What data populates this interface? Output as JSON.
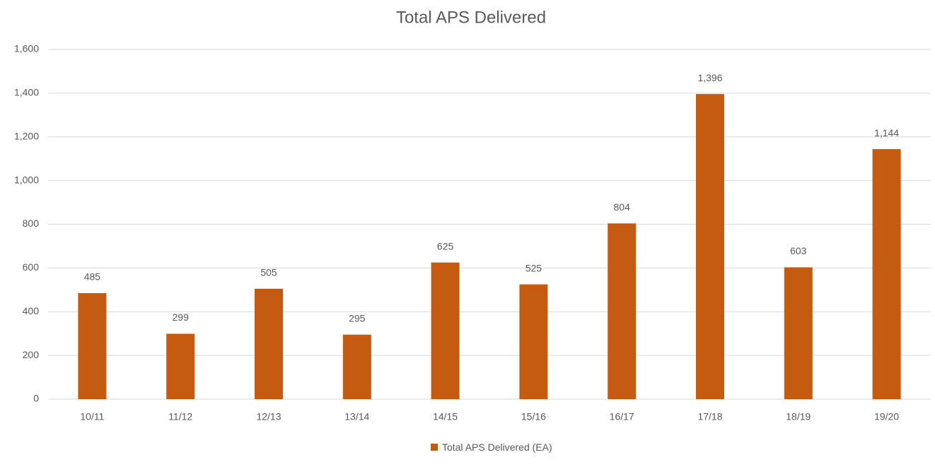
{
  "chart_data": {
    "type": "bar",
    "title": "Total APS Delivered",
    "categories": [
      "10/11",
      "11/12",
      "12/13",
      "13/14",
      "14/15",
      "15/16",
      "16/17",
      "17/18",
      "18/19",
      "19/20"
    ],
    "series": [
      {
        "name": "Total APS Delivered (EA)",
        "color": "#c55a11",
        "values": [
          485,
          299,
          505,
          295,
          625,
          525,
          804,
          1396,
          603,
          1144
        ],
        "value_labels": [
          "485",
          "299",
          "505",
          "295",
          "625",
          "525",
          "804",
          "1,396",
          "603",
          "1,144"
        ]
      }
    ],
    "ylim": [
      0,
      1600
    ],
    "yticks": [
      0,
      200,
      400,
      600,
      800,
      {
        "value": 1000,
        "label": "1,000"
      },
      {
        "value": 1200,
        "label": "1,200"
      },
      {
        "value": 1400,
        "label": "1,400"
      },
      {
        "value": 1600,
        "label": "1,600"
      }
    ],
    "grid": true,
    "legend": "bottom"
  }
}
